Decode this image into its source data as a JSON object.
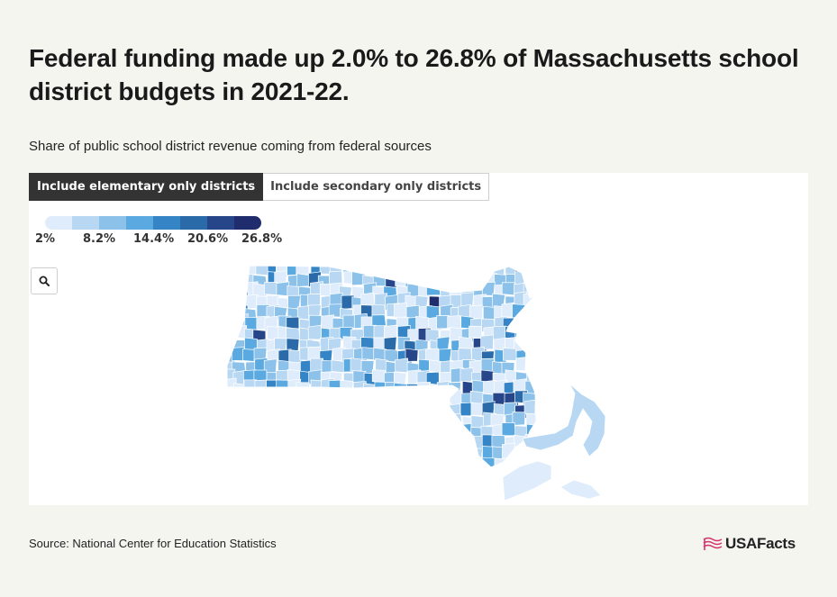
{
  "headline": "Federal funding made up 2.0% to 26.8% of Massachusetts school district budgets in 2021-22.",
  "subtitle": "Share of public school district revenue coming from federal sources",
  "tabs": [
    {
      "label": "Include elementary only districts",
      "active": true
    },
    {
      "label": "Include secondary only districts",
      "active": false
    }
  ],
  "legend": {
    "colors": [
      "#deecfb",
      "#b7d7f3",
      "#8cc2ea",
      "#5aa9e0",
      "#3584c6",
      "#2a6aa8",
      "#27468a",
      "#1f2d6e"
    ],
    "labels": [
      "2%",
      "8.2%",
      "14.4%",
      "20.6%",
      "26.8%"
    ]
  },
  "search": {
    "icon": "magnifier-icon"
  },
  "source": "Source: National Center for Education Statistics",
  "brand": {
    "name": "USAFacts",
    "icon": "flag-icon",
    "icon_color": "#d6336c"
  },
  "map": {
    "state": "Massachusetts",
    "value_range_percent": [
      2.0,
      26.8
    ]
  }
}
